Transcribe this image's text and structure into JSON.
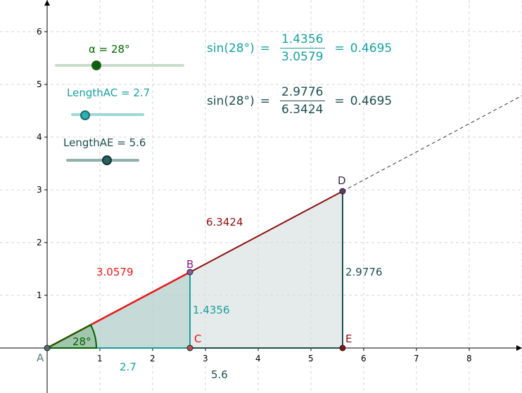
{
  "axes": {
    "x_ticks": [
      "1",
      "2",
      "3",
      "4",
      "5",
      "6",
      "7",
      "8"
    ],
    "y_ticks": [
      "1",
      "2",
      "3",
      "4",
      "5",
      "6"
    ]
  },
  "points": {
    "A": "A",
    "B": "B",
    "C": "C",
    "D": "D",
    "E": "E"
  },
  "segment_labels": {
    "AB": "3.0579",
    "AD": "6.3424",
    "BC": "1.4356",
    "DE": "2.9776",
    "AC": "2.7",
    "AE": "5.6",
    "angle": "28°"
  },
  "sliders": [
    {
      "label": "α = 28°",
      "color": "#006400",
      "track_color": "#c8dcc8",
      "value_fraction": 0.31
    },
    {
      "label": "LengthAC = 2.7",
      "color": "#1a9f9f",
      "track_color": "#9fd8d8",
      "value_fraction": 0.19
    },
    {
      "label": "LengthAE = 5.6",
      "color": "#1f4f4f",
      "track_color": "#8fb0aa",
      "value_fraction": 0.56
    }
  ],
  "formulas": [
    {
      "lhs": "sin(28°)",
      "eq1": "=",
      "num": "1.4356",
      "den": "3.0579",
      "eq2": "=",
      "result": "0.4695",
      "color": "#1a9f9f"
    },
    {
      "lhs": "sin(28°)",
      "eq1": "=",
      "num": "2.9776",
      "den": "6.3424",
      "eq2": "=",
      "result": "0.4695",
      "color": "#1f4f4f"
    }
  ],
  "colors": {
    "red": "#e81818",
    "dark_red": "#8b1010",
    "teal": "#1a9f9f",
    "dark_teal": "#1f4f4f",
    "green": "#006400",
    "purple": "#8b1c8b"
  }
}
